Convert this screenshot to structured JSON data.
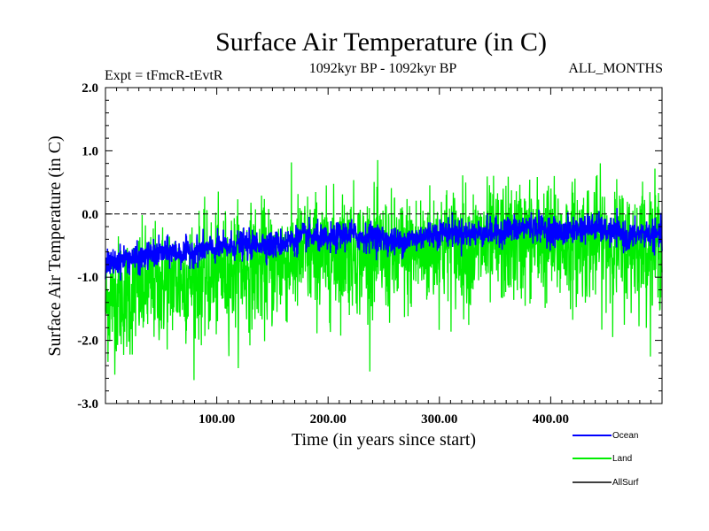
{
  "chart_data": {
    "type": "line",
    "title": "Surface Air Temperature (in C)",
    "subtitle_left": "Expt = tFmcR-tEvtR",
    "subtitle_center": "1092kyr BP - 1092kyr BP",
    "subtitle_right": "ALL_MONTHS",
    "xlabel": "Time (in years since start)",
    "ylabel": "Surface Air Temperature (in C)",
    "xlim": [
      0,
      500
    ],
    "ylim": [
      -3.0,
      2.0
    ],
    "xticks": [
      100,
      200,
      300,
      400
    ],
    "xtick_labels": [
      "100.00",
      "200.00",
      "300.00",
      "400.00"
    ],
    "yticks": [
      -3.0,
      -2.0,
      -1.0,
      0.0,
      1.0,
      2.0
    ],
    "ytick_labels": [
      "-3.0",
      "-2.0",
      "-1.0",
      "0.0",
      "1.0",
      "2.0"
    ],
    "zero_line": true,
    "legend_position": "bottom-right",
    "series": [
      {
        "name": "Ocean",
        "color": "#0000ff",
        "x": [
          0,
          10,
          20,
          30,
          40,
          50,
          60,
          70,
          80,
          90,
          100,
          110,
          120,
          130,
          140,
          150,
          160,
          170,
          180,
          190,
          200,
          210,
          220,
          230,
          240,
          250,
          260,
          270,
          280,
          290,
          300,
          310,
          320,
          330,
          340,
          350,
          360,
          370,
          380,
          390,
          400,
          410,
          420,
          430,
          440,
          450,
          460,
          470,
          480,
          490,
          500
        ],
        "values": [
          -0.8,
          -0.75,
          -0.7,
          -0.72,
          -0.65,
          -0.62,
          -0.6,
          -0.62,
          -0.58,
          -0.55,
          -0.55,
          -0.52,
          -0.48,
          -0.5,
          -0.46,
          -0.5,
          -0.45,
          -0.42,
          -0.35,
          -0.38,
          -0.42,
          -0.35,
          -0.3,
          -0.38,
          -0.35,
          -0.4,
          -0.45,
          -0.42,
          -0.38,
          -0.32,
          -0.3,
          -0.28,
          -0.3,
          -0.32,
          -0.28,
          -0.3,
          -0.25,
          -0.25,
          -0.2,
          -0.22,
          -0.25,
          -0.3,
          -0.25,
          -0.22,
          -0.2,
          -0.28,
          -0.3,
          -0.38,
          -0.3,
          -0.32,
          -0.35
        ],
        "noise_amplitude": 0.2
      },
      {
        "name": "Land",
        "color": "#00ee00",
        "x": [
          0,
          10,
          20,
          30,
          40,
          50,
          60,
          70,
          80,
          90,
          100,
          110,
          120,
          130,
          140,
          150,
          160,
          170,
          180,
          190,
          200,
          210,
          220,
          230,
          240,
          250,
          260,
          270,
          280,
          290,
          300,
          310,
          320,
          330,
          340,
          350,
          360,
          370,
          380,
          390,
          400,
          410,
          420,
          430,
          440,
          450,
          460,
          470,
          480,
          490,
          500
        ],
        "values": [
          -1.4,
          -1.3,
          -1.3,
          -1.2,
          -1.15,
          -1.1,
          -1.05,
          -1.05,
          -1.0,
          -1.0,
          -0.95,
          -0.9,
          -0.85,
          -0.85,
          -0.8,
          -0.85,
          -0.75,
          -0.7,
          -0.6,
          -0.65,
          -0.7,
          -0.6,
          -0.55,
          -0.65,
          -0.6,
          -0.65,
          -0.7,
          -0.65,
          -0.6,
          -0.55,
          -0.5,
          -0.5,
          -0.5,
          -0.55,
          -0.5,
          -0.5,
          -0.45,
          -0.45,
          -0.4,
          -0.42,
          -0.45,
          -0.5,
          -0.45,
          -0.42,
          -0.4,
          -0.45,
          -0.5,
          -0.55,
          -0.45,
          -0.5,
          -0.5
        ],
        "noise_amplitude": 0.85
      },
      {
        "name": "AllSurf",
        "color": "#000000",
        "x": [],
        "values": []
      }
    ]
  }
}
